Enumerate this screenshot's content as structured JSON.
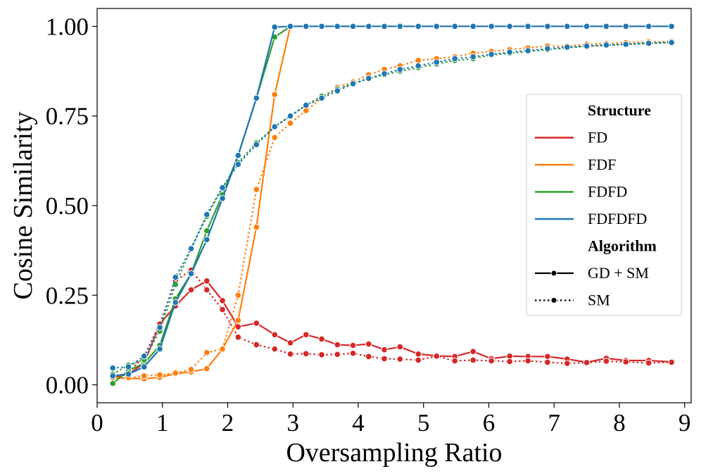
{
  "chart_data": {
    "type": "line",
    "xlabel": "Oversampling Ratio",
    "ylabel": "Cosine Similarity",
    "xlim": [
      0,
      9.1
    ],
    "ylim": [
      -0.05,
      1.05
    ],
    "xticks": [
      0,
      1,
      2,
      3,
      4,
      5,
      6,
      7,
      8,
      9
    ],
    "xtick_labels": [
      "0",
      "1",
      "2",
      "3",
      "4",
      "5",
      "6",
      "7",
      "8",
      "9"
    ],
    "yticks": [
      0.0,
      0.25,
      0.5,
      0.75,
      1.0
    ],
    "ytick_labels": [
      "0.00",
      "0.25",
      "0.50",
      "0.75",
      "1.00"
    ],
    "grid": false,
    "legend": {
      "placement": "center-right",
      "structure_title": "Structure",
      "algorithm_title": "Algorithm",
      "structures": [
        {
          "name": "FD",
          "color": "#d62728"
        },
        {
          "name": "FDF",
          "color": "#ff7f0e"
        },
        {
          "name": "FDFD",
          "color": "#2ca02c"
        },
        {
          "name": "FDFDFD",
          "color": "#1f77b4"
        }
      ],
      "algorithms": [
        {
          "name": "GD + SM",
          "style": "solid"
        },
        {
          "name": "SM",
          "style": "dotted"
        }
      ]
    },
    "x": [
      0.24,
      0.48,
      0.72,
      0.96,
      1.2,
      1.44,
      1.68,
      1.92,
      2.16,
      2.44,
      2.72,
      2.96,
      3.2,
      3.44,
      3.68,
      3.92,
      4.16,
      4.4,
      4.64,
      4.92,
      5.2,
      5.48,
      5.76,
      6.04,
      6.32,
      6.6,
      6.9,
      7.2,
      7.5,
      7.8,
      8.1,
      8.45,
      8.8
    ],
    "series": [
      {
        "name": "FD",
        "algorithm": "GD + SM",
        "color": "#d62728",
        "values": [
          0.02,
          0.03,
          0.06,
          0.17,
          0.22,
          0.265,
          0.29,
          0.235,
          0.162,
          0.172,
          0.14,
          0.117,
          0.14,
          0.128,
          0.112,
          0.11,
          0.114,
          0.098,
          0.106,
          0.086,
          0.081,
          0.079,
          0.093,
          0.073,
          0.08,
          0.079,
          0.079,
          0.072,
          0.063,
          0.074,
          0.068,
          0.068,
          0.064
        ]
      },
      {
        "name": "FD",
        "algorithm": "SM",
        "color": "#d62728",
        "values": [
          0.02,
          0.035,
          0.08,
          0.17,
          0.29,
          0.32,
          0.265,
          0.21,
          0.133,
          0.112,
          0.1,
          0.086,
          0.087,
          0.084,
          0.085,
          0.088,
          0.079,
          0.073,
          0.072,
          0.069,
          0.08,
          0.067,
          0.069,
          0.067,
          0.065,
          0.067,
          0.063,
          0.06,
          0.062,
          0.066,
          0.064,
          0.061,
          0.063
        ]
      },
      {
        "name": "FDF",
        "algorithm": "GD + SM",
        "color": "#ff7f0e",
        "values": [
          0.02,
          0.018,
          0.017,
          0.021,
          0.031,
          0.036,
          0.045,
          0.1,
          0.18,
          0.44,
          0.81,
          1.0,
          1.0,
          1.0,
          1.0,
          1.0,
          1.0,
          1.0,
          1.0,
          1.0,
          1.0,
          1.0,
          1.0,
          1.0,
          1.0,
          1.0,
          1.0,
          1.0,
          1.0,
          1.0,
          1.0,
          1.0,
          1.0
        ]
      },
      {
        "name": "FDF",
        "algorithm": "SM",
        "color": "#ff7f0e",
        "values": [
          0.02,
          0.02,
          0.025,
          0.028,
          0.033,
          0.043,
          0.09,
          0.1,
          0.25,
          0.545,
          0.69,
          0.73,
          0.765,
          0.8,
          0.83,
          0.845,
          0.865,
          0.88,
          0.89,
          0.905,
          0.91,
          0.915,
          0.925,
          0.93,
          0.935,
          0.94,
          0.945,
          0.945,
          0.95,
          0.952,
          0.955,
          0.957,
          0.958
        ]
      },
      {
        "name": "FDFD",
        "algorithm": "GD + SM",
        "color": "#2ca02c",
        "values": [
          0.004,
          0.04,
          0.06,
          0.11,
          0.24,
          0.31,
          0.43,
          0.53,
          0.64,
          0.8,
          0.97,
          1.0,
          1.0,
          1.0,
          1.0,
          1.0,
          1.0,
          1.0,
          1.0,
          1.0,
          1.0,
          1.0,
          1.0,
          1.0,
          1.0,
          1.0,
          1.0,
          1.0,
          1.0,
          1.0,
          1.0,
          1.0,
          1.0
        ]
      },
      {
        "name": "FDFD",
        "algorithm": "SM",
        "color": "#2ca02c",
        "values": [
          0.03,
          0.055,
          0.07,
          0.15,
          0.28,
          0.38,
          0.47,
          0.55,
          0.62,
          0.675,
          0.72,
          0.75,
          0.78,
          0.805,
          0.825,
          0.84,
          0.855,
          0.865,
          0.875,
          0.885,
          0.895,
          0.905,
          0.91,
          0.92,
          0.925,
          0.93,
          0.935,
          0.94,
          0.945,
          0.947,
          0.95,
          0.953,
          0.955
        ]
      },
      {
        "name": "FDFDFD",
        "algorithm": "GD + SM",
        "color": "#1f77b4",
        "values": [
          0.025,
          0.03,
          0.05,
          0.1,
          0.23,
          0.31,
          0.405,
          0.52,
          0.64,
          0.8,
          0.998,
          1.0,
          1.0,
          1.0,
          1.0,
          1.0,
          1.0,
          1.0,
          1.0,
          1.0,
          1.0,
          1.0,
          1.0,
          1.0,
          1.0,
          1.0,
          1.0,
          1.0,
          1.0,
          1.0,
          1.0,
          1.0,
          1.0
        ]
      },
      {
        "name": "FDFDFD",
        "algorithm": "SM",
        "color": "#1f77b4",
        "values": [
          0.047,
          0.05,
          0.08,
          0.16,
          0.3,
          0.38,
          0.475,
          0.55,
          0.615,
          0.67,
          0.72,
          0.75,
          0.78,
          0.8,
          0.82,
          0.84,
          0.855,
          0.868,
          0.88,
          0.89,
          0.9,
          0.91,
          0.915,
          0.922,
          0.928,
          0.932,
          0.938,
          0.942,
          0.945,
          0.948,
          0.95,
          0.953,
          0.955
        ]
      }
    ]
  }
}
